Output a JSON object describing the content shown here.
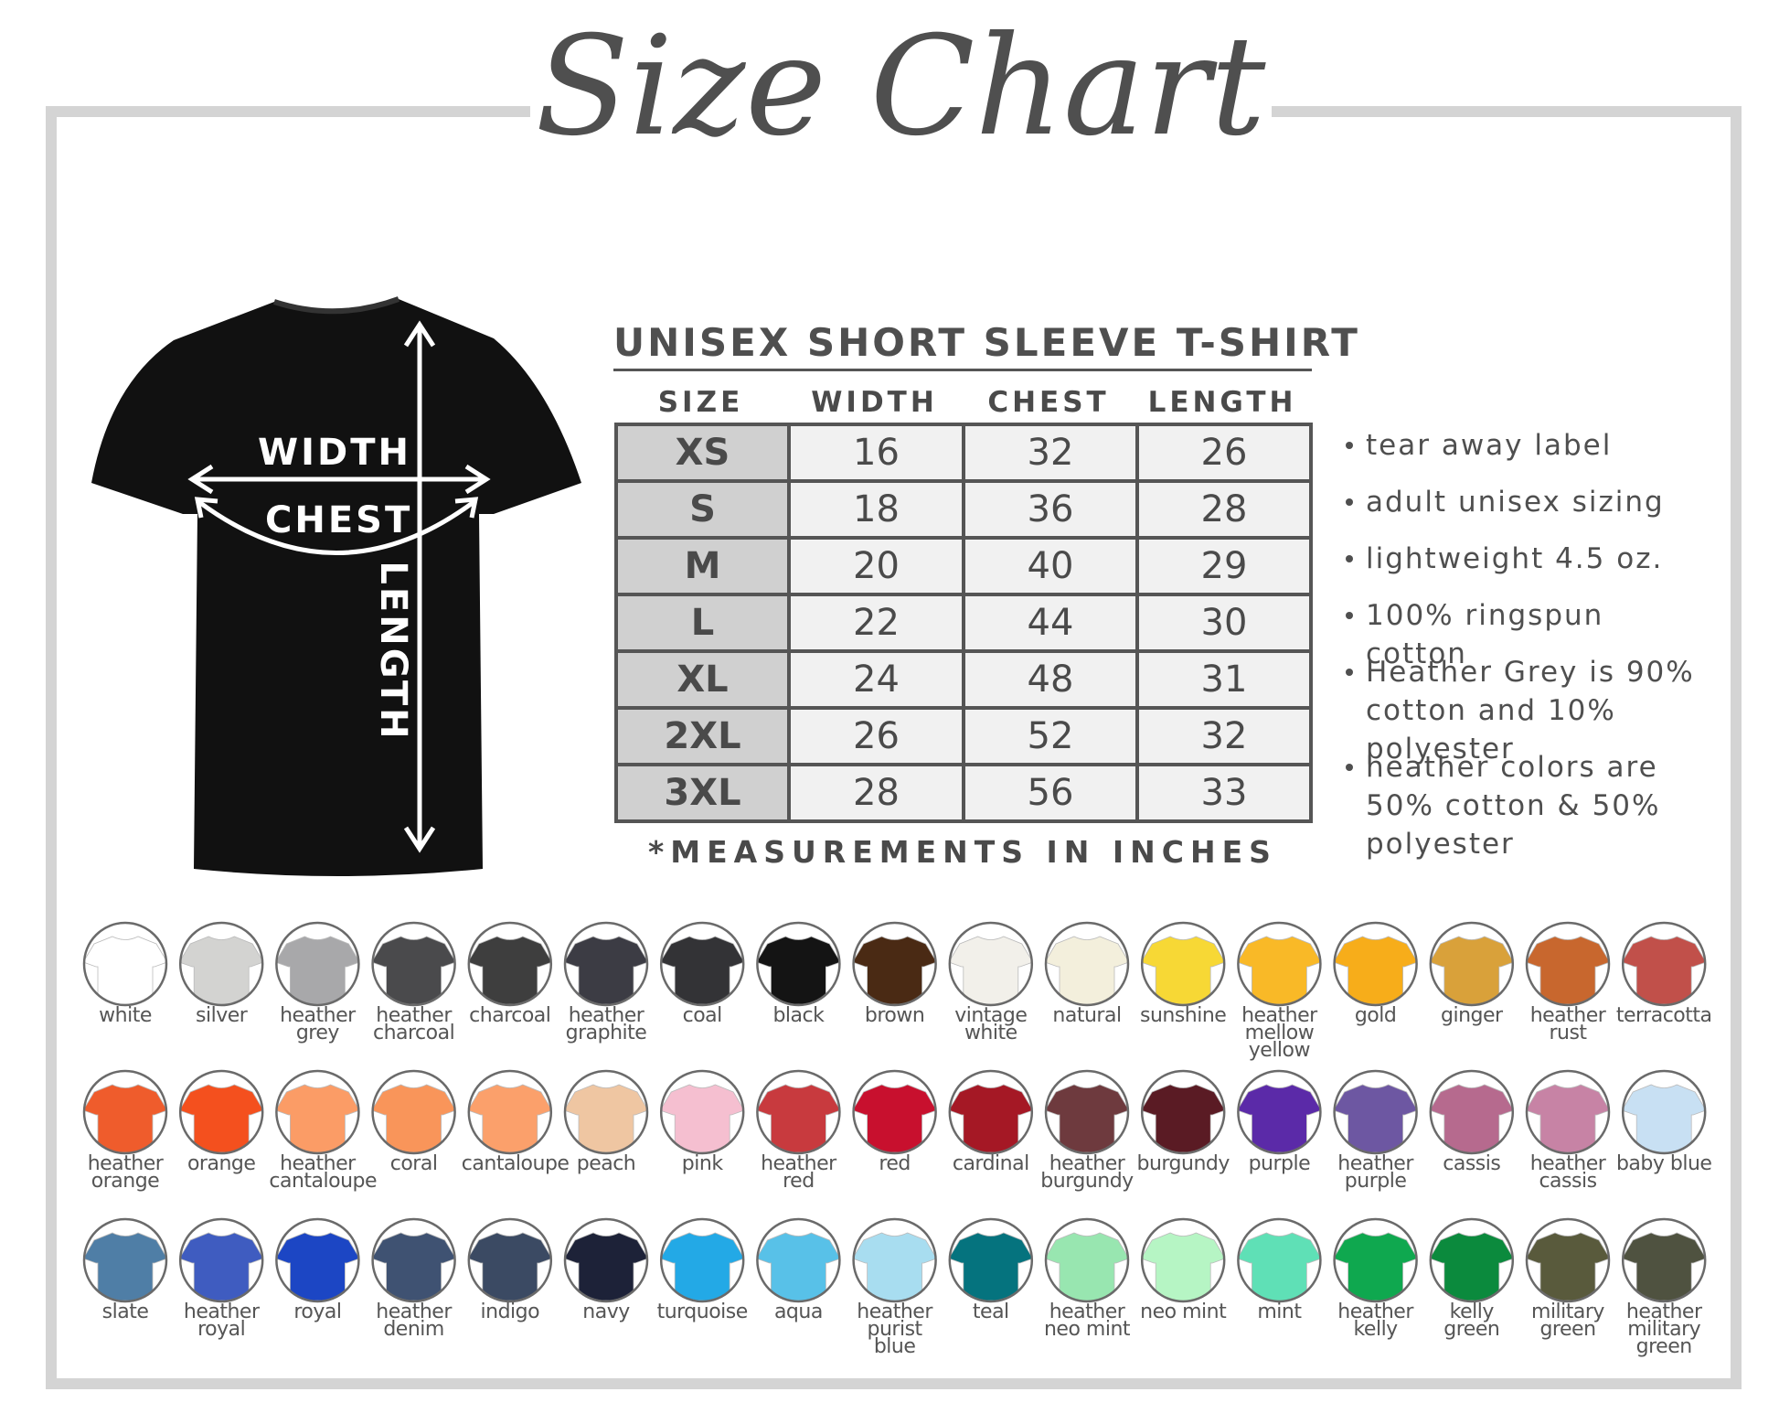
{
  "header": {
    "title": "Size Chart"
  },
  "diagram": {
    "width": "WIDTH",
    "chest": "CHEST",
    "length": "LENGTH"
  },
  "table": {
    "title": "UNISEX SHORT SLEEVE T-SHIRT",
    "columns": [
      "SIZE",
      "WIDTH",
      "CHEST",
      "LENGTH"
    ],
    "rows": [
      [
        "XS",
        16,
        32,
        26
      ],
      [
        "S",
        18,
        36,
        28
      ],
      [
        "M",
        20,
        40,
        29
      ],
      [
        "L",
        22,
        44,
        30
      ],
      [
        "XL",
        24,
        48,
        31
      ],
      [
        "2XL",
        26,
        52,
        32
      ],
      [
        "3XL",
        28,
        56,
        33
      ]
    ],
    "note": "*MEASUREMENTS IN INCHES"
  },
  "features": [
    "tear away label",
    "adult unisex sizing",
    "lightweight 4.5 oz.",
    "100% ringspun cotton",
    "Heather Grey is 90% cotton and 10% polyester",
    "heather colors are 50% cotton & 50% polyester"
  ],
  "colors": [
    {
      "name": "white",
      "color": "#ffffff"
    },
    {
      "name": "silver",
      "color": "#d3d3d1"
    },
    {
      "name": "heather grey",
      "color": "#a8a8aa"
    },
    {
      "name": "heather charcoal",
      "color": "#4a4a4c"
    },
    {
      "name": "charcoal",
      "color": "#3e3e3e"
    },
    {
      "name": "heather graphite",
      "color": "#3c3c44"
    },
    {
      "name": "coal",
      "color": "#333336"
    },
    {
      "name": "black",
      "color": "#141414"
    },
    {
      "name": "brown",
      "color": "#4a2a14"
    },
    {
      "name": "vintage white",
      "color": "#f2f0ea"
    },
    {
      "name": "natural",
      "color": "#f3efdc"
    },
    {
      "name": "sunshine",
      "color": "#f7d835"
    },
    {
      "name": "heather mellow yellow",
      "color": "#f9b927"
    },
    {
      "name": "gold",
      "color": "#f7ad1a"
    },
    {
      "name": "ginger",
      "color": "#d9a13a"
    },
    {
      "name": "heather rust",
      "color": "#c8672e"
    },
    {
      "name": "terracotta",
      "color": "#c1504a"
    },
    {
      "name": "heather orange",
      "color": "#ef5c2c"
    },
    {
      "name": "orange",
      "color": "#f4501e"
    },
    {
      "name": "heather cantaloupe",
      "color": "#fb9c66"
    },
    {
      "name": "coral",
      "color": "#f9955a"
    },
    {
      "name": "cantaloupe",
      "color": "#fba06b"
    },
    {
      "name": "peach",
      "color": "#efc6a2"
    },
    {
      "name": "pink",
      "color": "#f5bfd0"
    },
    {
      "name": "heather red",
      "color": "#c83a3e"
    },
    {
      "name": "red",
      "color": "#c8102e"
    },
    {
      "name": "cardinal",
      "color": "#a51825"
    },
    {
      "name": "heather burgundy",
      "color": "#6e3a3e"
    },
    {
      "name": "burgundy",
      "color": "#5a1b24"
    },
    {
      "name": "purple",
      "color": "#5b2aa8"
    },
    {
      "name": "heather purple",
      "color": "#6d57a2"
    },
    {
      "name": "cassis",
      "color": "#b66a8e"
    },
    {
      "name": "heather cassis",
      "color": "#c783a5"
    },
    {
      "name": "baby blue",
      "color": "#c8e0f3"
    },
    {
      "name": "slate",
      "color": "#4f7ea6"
    },
    {
      "name": "heather royal",
      "color": "#3f5cc0"
    },
    {
      "name": "royal",
      "color": "#1c46c4"
    },
    {
      "name": "heather denim",
      "color": "#3f5272"
    },
    {
      "name": "indigo",
      "color": "#3b4a63"
    },
    {
      "name": "navy",
      "color": "#1d2238"
    },
    {
      "name": "turquoise",
      "color": "#23a9e6"
    },
    {
      "name": "aqua",
      "color": "#58c1e8"
    },
    {
      "name": "heather purist blue",
      "color": "#a8ddf0"
    },
    {
      "name": "teal",
      "color": "#05737e"
    },
    {
      "name": "heather neo mint",
      "color": "#98e6b0"
    },
    {
      "name": "neo mint",
      "color": "#b6f5c4"
    },
    {
      "name": "mint",
      "color": "#5fe0b6"
    },
    {
      "name": "heather kelly",
      "color": "#0fa84f"
    },
    {
      "name": "kelly green",
      "color": "#0b8a3d"
    },
    {
      "name": "military green",
      "color": "#595a3c"
    },
    {
      "name": "heather military green",
      "color": "#4f5240"
    }
  ]
}
